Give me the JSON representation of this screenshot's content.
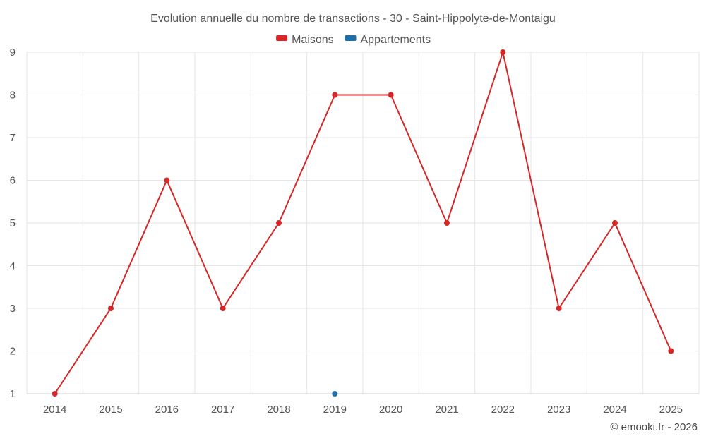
{
  "chart_data": {
    "type": "line",
    "title": "Evolution annuelle du nombre de transactions - 30 - Saint-Hippolyte-de-Montaigu",
    "categories": [
      "2014",
      "2015",
      "2016",
      "2017",
      "2018",
      "2019",
      "2020",
      "2021",
      "2022",
      "2023",
      "2024",
      "2025"
    ],
    "series": [
      {
        "name": "Maisons",
        "color": "#d62728",
        "values": [
          1,
          3,
          6,
          3,
          5,
          8,
          8,
          5,
          9,
          3,
          5,
          2
        ]
      },
      {
        "name": "Appartements",
        "color": "#1f6ea8",
        "values": [
          null,
          null,
          null,
          null,
          null,
          1,
          null,
          null,
          null,
          null,
          null,
          null
        ]
      }
    ],
    "ylim": [
      1,
      9
    ],
    "yticks": [
      "1",
      "2",
      "3",
      "4",
      "5",
      "6",
      "7",
      "8",
      "9"
    ],
    "xlabel": "",
    "ylabel": "",
    "grid": true,
    "legend": "top-center"
  },
  "credit": "© emooki.fr - 2026"
}
